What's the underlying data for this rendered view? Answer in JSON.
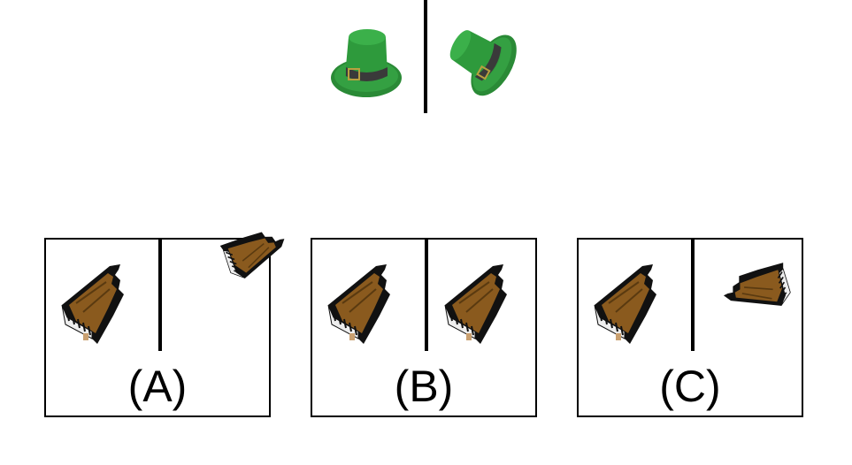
{
  "example": {
    "left_icon": "green-top-hat-icon",
    "right_icon": "green-top-hat-rotated-icon",
    "colors": {
      "hat": "#2e8b3a",
      "hat_dark": "#1f6b2a",
      "band": "#3a3a3a"
    }
  },
  "options": [
    {
      "label": "(A)",
      "left_icon": "grand-piano-icon",
      "right_icon": "grand-piano-flipped-icon"
    },
    {
      "label": "(B)",
      "left_icon": "grand-piano-icon",
      "right_icon": "grand-piano-icon"
    },
    {
      "label": "(C)",
      "left_icon": "grand-piano-icon",
      "right_icon": "grand-piano-rotated-icon"
    }
  ],
  "colors": {
    "piano_wood": "#8a5a1e",
    "piano_black": "#111111"
  }
}
